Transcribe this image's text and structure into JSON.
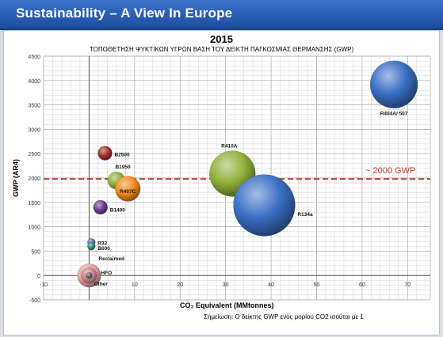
{
  "slide": {
    "title": "Sustainability – A View In Europe"
  },
  "chart_data": {
    "type": "scatter",
    "title": "2015",
    "subtitle": "ΤΟΠΟΘΕΤΗΣΗ ΨΥΚΤΙΚΩΝ ΥΓΡΩΝ ΒΑΣΗ ΤΟΥ ΔΕΙΚΤΗ ΠΑΓΚΟΣΜΙΑΣ ΘΕΡΜΑΝΣΗΣ (GWP)",
    "xlabel": "CO₂ Equivalent (MMtonnes)",
    "ylabel": "GWP (AR4)",
    "note": "Σημείωση: Ο δείκτης GWP ενός μορίου CO2 ισούται με 1",
    "xlim": [
      -10,
      75
    ],
    "ylim": [
      -500,
      4500
    ],
    "xticks": [
      -10,
      0,
      10,
      20,
      30,
      40,
      50,
      60,
      70
    ],
    "yticks": [
      -500,
      0,
      500,
      1000,
      1500,
      2000,
      2500,
      3000,
      3500,
      4000,
      4500
    ],
    "grid": true,
    "reference_line": {
      "y": 1980,
      "label": "~ 2000 GWP",
      "color": "#c0392b"
    },
    "points": [
      {
        "label": "R404A/ 507",
        "x": 67,
        "y": 3920,
        "size": 30,
        "color": "#3a6fc4"
      },
      {
        "label": "R410A",
        "x": 31.5,
        "y": 2090,
        "size": 29,
        "color": "#8fb13a"
      },
      {
        "label": "R134a",
        "x": 38.5,
        "y": 1440,
        "size": 39,
        "color": "#3a6fc4"
      },
      {
        "label": "B2500",
        "x": 3.5,
        "y": 2510,
        "size": 9,
        "color": "#a32b2b"
      },
      {
        "label": "B1950",
        "x": 6,
        "y": 1950,
        "size": 11,
        "color": "#8fb13a"
      },
      {
        "label": "R407C",
        "x": 8.5,
        "y": 1780,
        "size": 16,
        "color": "#f08c1c"
      },
      {
        "label": "B1400",
        "x": 2.5,
        "y": 1400,
        "size": 9,
        "color": "#6a3d8f"
      },
      {
        "label": "R32",
        "x": 0.5,
        "y": 680,
        "size": 5,
        "color": "#5a6db0"
      },
      {
        "label": "B600",
        "x": 0.5,
        "y": 600,
        "size": 5,
        "color": "#2a8f7e"
      },
      {
        "label": "Reclaimed",
        "x": 0,
        "y": 0,
        "size": 15,
        "color": "#e8a3a3"
      },
      {
        "label": "HFO",
        "x": 0,
        "y": 0,
        "size": 10,
        "color": "#c08080"
      },
      {
        "label": "Other",
        "x": 0,
        "y": 0,
        "size": 4,
        "color": "#666666"
      }
    ]
  }
}
